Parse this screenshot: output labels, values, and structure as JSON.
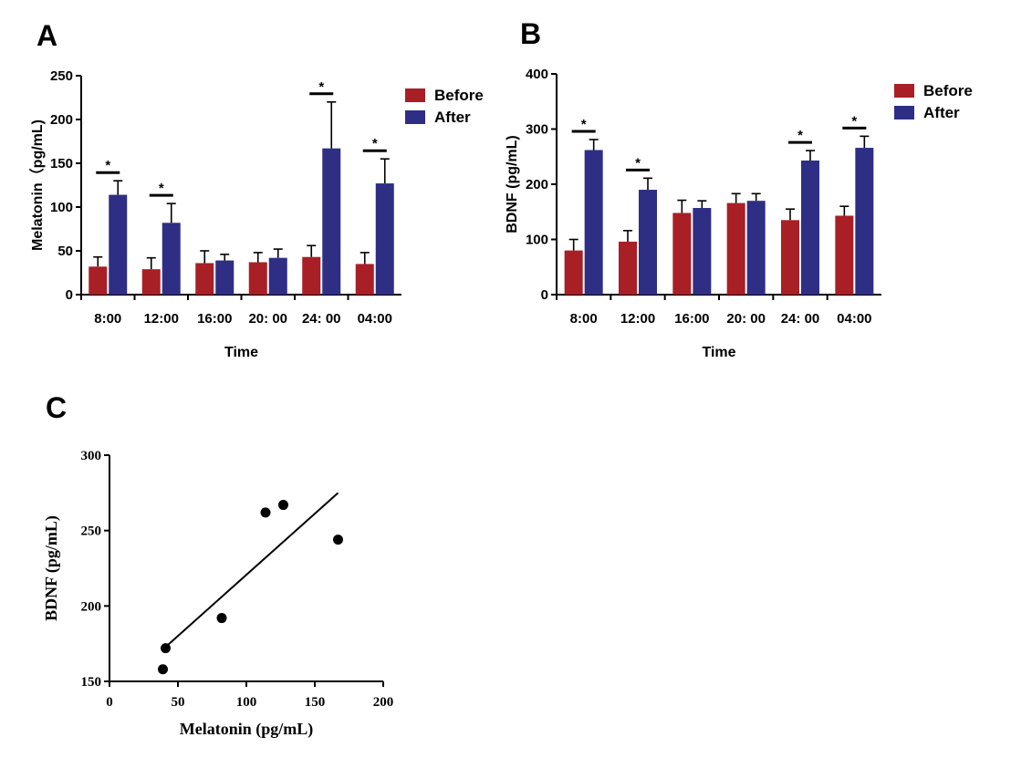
{
  "colors": {
    "before": "#A81F26",
    "after": "#2F2E85",
    "axis": "#000000"
  },
  "panels": {
    "a": "A",
    "b": "B",
    "c": "C"
  },
  "chart_data": [
    {
      "id": "A",
      "type": "bar",
      "categories": [
        "8:00",
        "12:00",
        "16:00",
        "20: 00",
        "24: 00",
        "04:00"
      ],
      "series": [
        {
          "name": "Before",
          "values": [
            32,
            29,
            36,
            37,
            43,
            35
          ],
          "errors": [
            11,
            13,
            14,
            11,
            13,
            13
          ]
        },
        {
          "name": "After",
          "values": [
            114,
            82,
            39,
            42,
            167,
            127
          ],
          "errors": [
            16,
            22,
            7,
            10,
            53,
            28
          ]
        }
      ],
      "significance": [
        "*",
        "*",
        "",
        "",
        "*",
        "*"
      ],
      "xlabel": "Time",
      "ylabel": "Melatonin（pg/mL)",
      "ylim": [
        0,
        250
      ],
      "yticks": [
        0,
        50,
        100,
        150,
        200,
        250
      ],
      "legend": "top-right"
    },
    {
      "id": "B",
      "type": "bar",
      "categories": [
        "8:00",
        "12:00",
        "16:00",
        "20: 00",
        "24: 00",
        "04:00"
      ],
      "series": [
        {
          "name": "Before",
          "values": [
            80,
            96,
            148,
            166,
            135,
            143
          ],
          "errors": [
            20,
            20,
            23,
            17,
            20,
            17
          ]
        },
        {
          "name": "After",
          "values": [
            262,
            190,
            157,
            170,
            243,
            266
          ],
          "errors": [
            19,
            21,
            13,
            13,
            18,
            21
          ]
        }
      ],
      "significance": [
        "*",
        "*",
        "",
        "",
        "*",
        "*"
      ],
      "xlabel": "Time",
      "ylabel": "BDNF (pg/mL)",
      "ylim": [
        0,
        400
      ],
      "yticks": [
        0,
        100,
        200,
        300,
        400
      ],
      "legend": "top-right"
    },
    {
      "id": "C",
      "type": "scatter",
      "x": [
        39,
        41,
        82,
        114,
        127,
        167
      ],
      "y": [
        158,
        172,
        192,
        262,
        267,
        244
      ],
      "fit_line": {
        "x": [
          40,
          167
        ],
        "y": [
          172,
          275
        ]
      },
      "xlabel": "Melatonin (pg/mL)",
      "ylabel": "BDNF (pg/mL)",
      "xlim": [
        0,
        200
      ],
      "ylim": [
        150,
        300
      ],
      "xticks": [
        0,
        50,
        100,
        150,
        200
      ],
      "yticks": [
        150,
        200,
        250,
        300
      ]
    }
  ]
}
